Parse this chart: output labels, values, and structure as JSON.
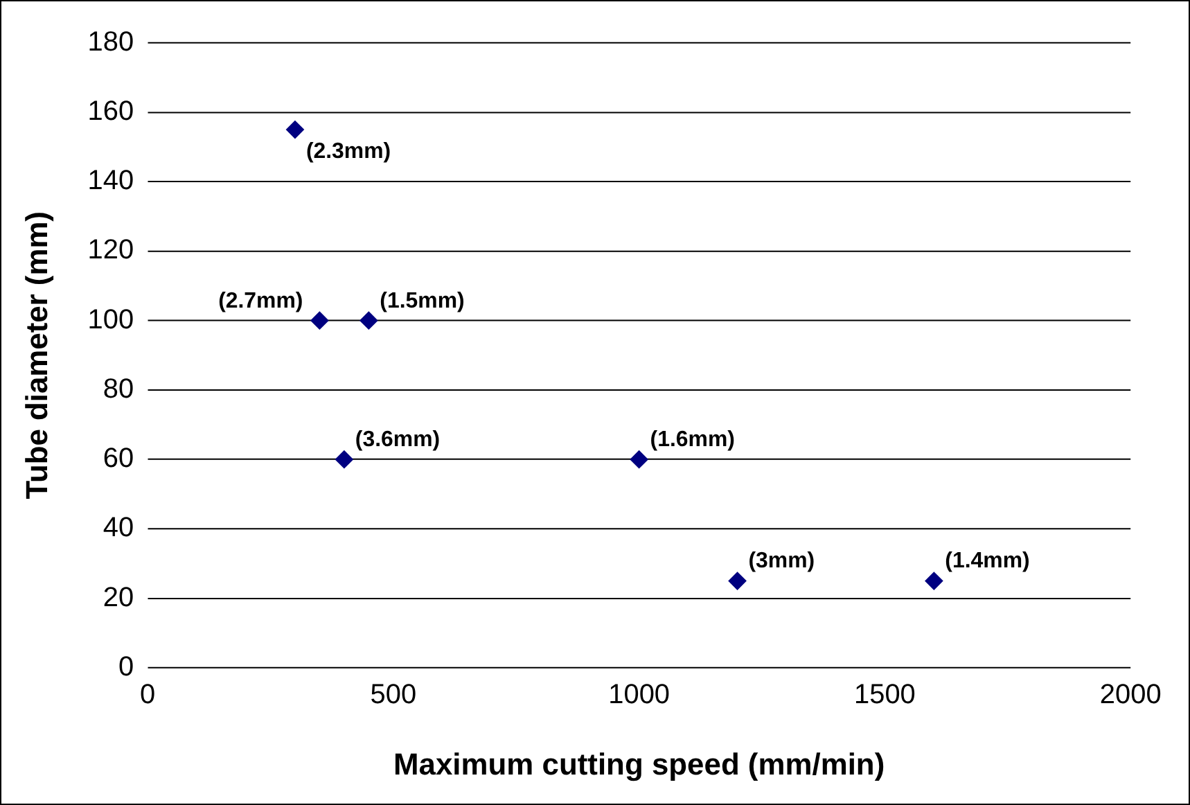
{
  "chart_data": {
    "type": "scatter",
    "xlabel": "Maximum cutting speed (mm/min)",
    "ylabel": "Tube diameter (mm)",
    "x": [
      300,
      350,
      450,
      400,
      1000,
      1200,
      1600
    ],
    "values": [
      155,
      100,
      100,
      60,
      60,
      25,
      25
    ],
    "color": "#000080",
    "marker": "diamond",
    "grid": "y",
    "legend": false,
    "xlim": [
      0,
      2000
    ],
    "xticks": [
      0,
      500,
      1000,
      1500,
      2000
    ],
    "ylim": [
      0,
      180
    ],
    "yticks": [
      0,
      20,
      40,
      60,
      80,
      100,
      120,
      140,
      160,
      180
    ],
    "annotations": [
      {
        "text": "(2.3mm)",
        "x": 300,
        "y": 155
      },
      {
        "text": "(2.7mm)",
        "x": 350,
        "y": 100
      },
      {
        "text": "(1.5mm)",
        "x": 450,
        "y": 100
      },
      {
        "text": "(3.6mm)",
        "x": 400,
        "y": 60
      },
      {
        "text": "(1.6mm)",
        "x": 1000,
        "y": 60
      },
      {
        "text": "(3mm)",
        "x": 1200,
        "y": 25
      },
      {
        "text": "(1.4mm)",
        "x": 1600,
        "y": 25
      }
    ]
  }
}
